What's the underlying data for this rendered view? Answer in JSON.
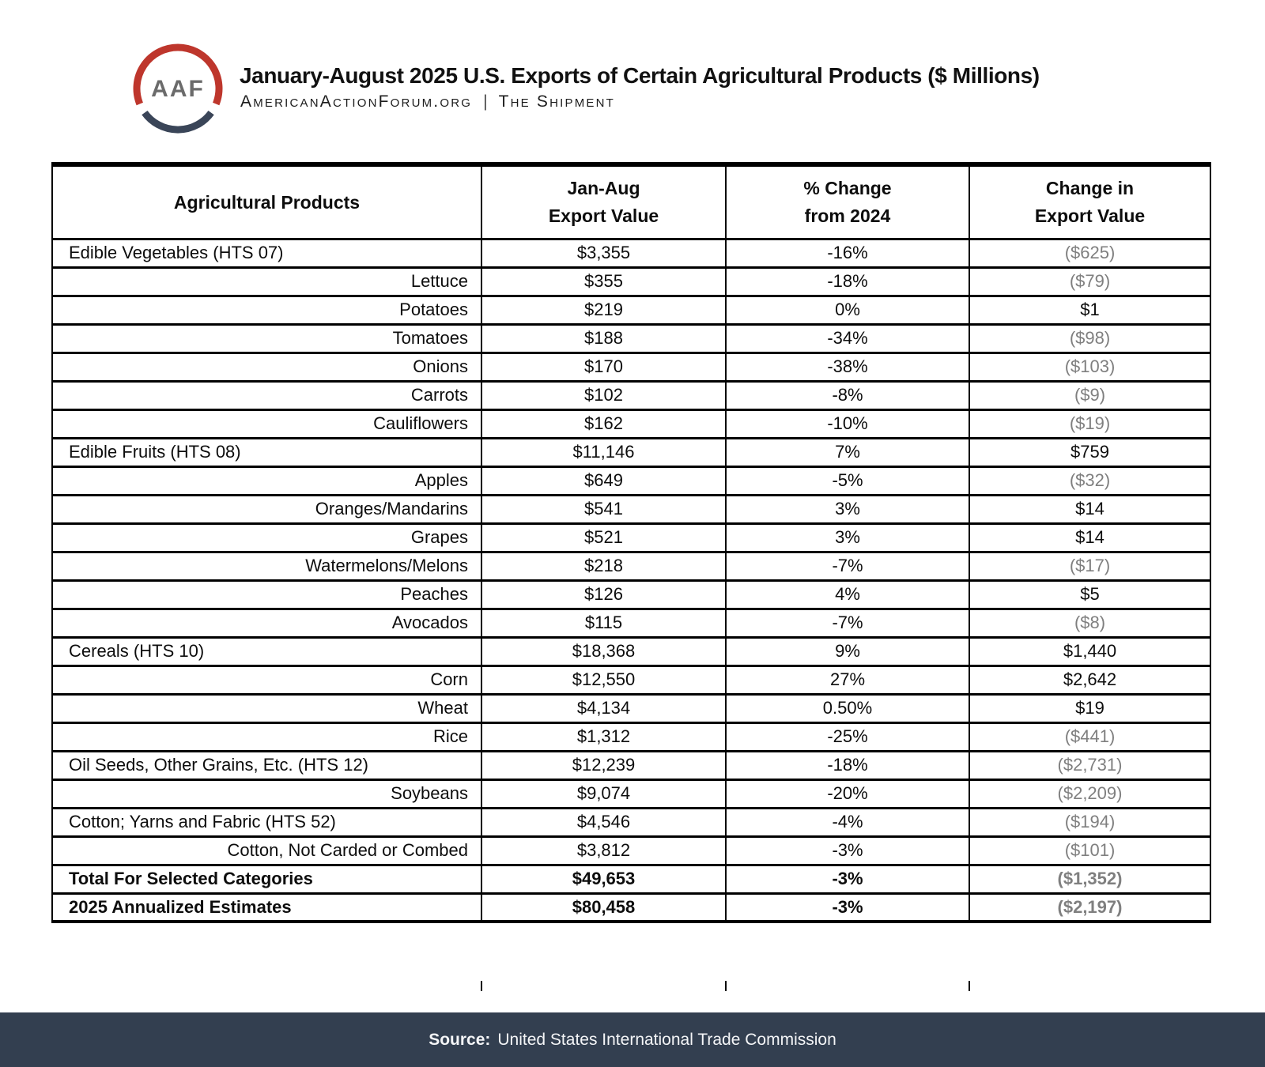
{
  "header": {
    "logo_text": "AAF",
    "title": "January-August 2025 U.S. Exports of Certain Agricultural Products ($ Millions)",
    "site": "AmericanActionForum.org",
    "separator": "|",
    "publication": "The Shipment"
  },
  "table": {
    "header": [
      {
        "line1": "Agricultural Products",
        "line2": ""
      },
      {
        "line1": "Jan-Aug",
        "line2": "Export Value"
      },
      {
        "line1": "% Change",
        "line2": "from 2024"
      },
      {
        "line1": "Change in",
        "line2": "Export Value"
      }
    ]
  },
  "chart_data": {
    "type": "table",
    "title": "January-August 2025 U.S. Exports of Certain Agricultural Products ($ Millions)",
    "columns": [
      "Agricultural Products",
      "Jan-Aug Export Value",
      "% Change from 2024",
      "Change in Export Value"
    ],
    "rows": [
      {
        "product": "Edible Vegetables (HTS 07)",
        "export_value": "$3,355",
        "pct_change": "-16%",
        "change_value": "($625)",
        "level": "category",
        "emphasis": false,
        "change_negative": true
      },
      {
        "product": "Lettuce",
        "export_value": "$355",
        "pct_change": "-18%",
        "change_value": "($79)",
        "level": "subcategory",
        "emphasis": false,
        "change_negative": true
      },
      {
        "product": "Potatoes",
        "export_value": "$219",
        "pct_change": "0%",
        "change_value": "$1",
        "level": "subcategory",
        "emphasis": false,
        "change_negative": false
      },
      {
        "product": "Tomatoes",
        "export_value": "$188",
        "pct_change": "-34%",
        "change_value": "($98)",
        "level": "subcategory",
        "emphasis": false,
        "change_negative": true
      },
      {
        "product": "Onions",
        "export_value": "$170",
        "pct_change": "-38%",
        "change_value": "($103)",
        "level": "subcategory",
        "emphasis": false,
        "change_negative": true
      },
      {
        "product": "Carrots",
        "export_value": "$102",
        "pct_change": "-8%",
        "change_value": "($9)",
        "level": "subcategory",
        "emphasis": false,
        "change_negative": true
      },
      {
        "product": "Cauliflowers",
        "export_value": "$162",
        "pct_change": "-10%",
        "change_value": "($19)",
        "level": "subcategory",
        "emphasis": false,
        "change_negative": true
      },
      {
        "product": "Edible Fruits (HTS 08)",
        "export_value": "$11,146",
        "pct_change": "7%",
        "change_value": "$759",
        "level": "category",
        "emphasis": false,
        "change_negative": false
      },
      {
        "product": "Apples",
        "export_value": "$649",
        "pct_change": "-5%",
        "change_value": "($32)",
        "level": "subcategory",
        "emphasis": false,
        "change_negative": true
      },
      {
        "product": "Oranges/Mandarins",
        "export_value": "$541",
        "pct_change": "3%",
        "change_value": "$14",
        "level": "subcategory",
        "emphasis": false,
        "change_negative": false
      },
      {
        "product": "Grapes",
        "export_value": "$521",
        "pct_change": "3%",
        "change_value": "$14",
        "level": "subcategory",
        "emphasis": false,
        "change_negative": false
      },
      {
        "product": "Watermelons/Melons",
        "export_value": "$218",
        "pct_change": "-7%",
        "change_value": "($17)",
        "level": "subcategory",
        "emphasis": false,
        "change_negative": true
      },
      {
        "product": "Peaches",
        "export_value": "$126",
        "pct_change": "4%",
        "change_value": "$5",
        "level": "subcategory",
        "emphasis": false,
        "change_negative": false
      },
      {
        "product": "Avocados",
        "export_value": "$115",
        "pct_change": "-7%",
        "change_value": "($8)",
        "level": "subcategory",
        "emphasis": false,
        "change_negative": true
      },
      {
        "product": "Cereals (HTS 10)",
        "export_value": "$18,368",
        "pct_change": "9%",
        "change_value": "$1,440",
        "level": "category",
        "emphasis": false,
        "change_negative": false
      },
      {
        "product": "Corn",
        "export_value": "$12,550",
        "pct_change": "27%",
        "change_value": "$2,642",
        "level": "subcategory",
        "emphasis": false,
        "change_negative": false
      },
      {
        "product": "Wheat",
        "export_value": "$4,134",
        "pct_change": "0.50%",
        "change_value": "$19",
        "level": "subcategory",
        "emphasis": false,
        "change_negative": false
      },
      {
        "product": "Rice",
        "export_value": "$1,312",
        "pct_change": "-25%",
        "change_value": "($441)",
        "level": "subcategory",
        "emphasis": false,
        "change_negative": true
      },
      {
        "product": "Oil Seeds, Other Grains, Etc. (HTS 12)",
        "export_value": "$12,239",
        "pct_change": "-18%",
        "change_value": "($2,731)",
        "level": "category",
        "emphasis": false,
        "change_negative": true
      },
      {
        "product": "Soybeans",
        "export_value": "$9,074",
        "pct_change": "-20%",
        "change_value": "($2,209)",
        "level": "subcategory",
        "emphasis": false,
        "change_negative": true
      },
      {
        "product": "Cotton; Yarns and Fabric (HTS 52)",
        "export_value": "$4,546",
        "pct_change": "-4%",
        "change_value": "($194)",
        "level": "category",
        "emphasis": false,
        "change_negative": true
      },
      {
        "product": "Cotton, Not Carded or Combed",
        "export_value": "$3,812",
        "pct_change": "-3%",
        "change_value": "($101)",
        "level": "subcategory",
        "emphasis": false,
        "change_negative": true
      },
      {
        "product": "Total For Selected Categories",
        "export_value": "$49,653",
        "pct_change": "-3%",
        "change_value": "($1,352)",
        "level": "total",
        "emphasis": true,
        "change_negative": true
      },
      {
        "product": "2025 Annualized Estimates",
        "export_value": "$80,458",
        "pct_change": "-3%",
        "change_value": "($2,197)",
        "level": "total",
        "emphasis": true,
        "change_negative": true
      }
    ]
  },
  "footer": {
    "source_label": "Source:",
    "source_text": "United States International Trade Commission"
  },
  "colors": {
    "logo_red": "#BE362C",
    "logo_navy": "#3A4558",
    "footer_bg": "#333F50",
    "muted_value": "#7F7F7F"
  }
}
